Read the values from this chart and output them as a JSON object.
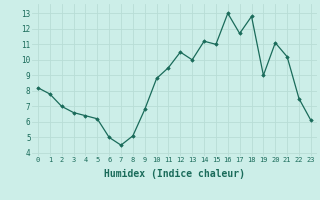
{
  "x": [
    0,
    1,
    2,
    3,
    4,
    5,
    6,
    7,
    8,
    9,
    10,
    11,
    12,
    13,
    14,
    15,
    16,
    17,
    18,
    19,
    20,
    21,
    22,
    23
  ],
  "y": [
    8.2,
    7.8,
    7.0,
    6.6,
    6.4,
    6.2,
    5.0,
    4.5,
    5.1,
    6.8,
    8.8,
    9.5,
    10.5,
    10.0,
    11.2,
    11.0,
    13.0,
    11.7,
    12.8,
    9.0,
    11.1,
    10.2,
    7.5,
    6.1
  ],
  "line_color": "#1a6b5a",
  "marker_color": "#1a6b5a",
  "bg_color": "#cceee8",
  "grid_color": "#b8ddd6",
  "xlabel": "Humidex (Indice chaleur)",
  "xlabel_fontsize": 7,
  "xtick_labels": [
    "0",
    "1",
    "2",
    "3",
    "4",
    "5",
    "6",
    "7",
    "8",
    "9",
    "10",
    "11",
    "12",
    "13",
    "14",
    "15",
    "16",
    "17",
    "18",
    "19",
    "20",
    "21",
    "22",
    "23"
  ],
  "ytick_labels": [
    "4",
    "5",
    "6",
    "7",
    "8",
    "9",
    "10",
    "11",
    "12",
    "13"
  ],
  "ylim": [
    3.8,
    13.6
  ],
  "xlim": [
    -0.5,
    23.5
  ]
}
